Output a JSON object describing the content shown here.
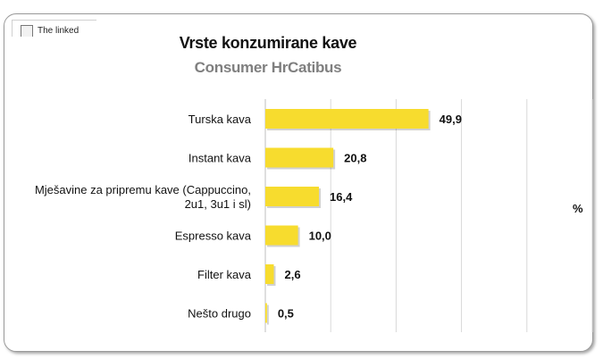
{
  "linked_image": {
    "text": "The linked"
  },
  "chart_data": {
    "type": "bar",
    "orientation": "horizontal",
    "title": "Vrste konzumirane kave",
    "subtitle": "Consumer HrCatibus",
    "categories": [
      "Turska kava",
      "Instant kava",
      "Mješavine za pripremu kave (Cappuccino, 2u1, 3u1 i sl)",
      "Espresso kava",
      "Filter kava",
      "Nešto drugo"
    ],
    "category_lines": [
      [
        "Turska kava"
      ],
      [
        "Instant kava"
      ],
      [
        "Mješavine za pripremu kave (Cappuccino,",
        "2u1, 3u1 i sl)"
      ],
      [
        "Espresso kava"
      ],
      [
        "Filter kava"
      ],
      [
        "Nešto drugo"
      ]
    ],
    "values": [
      49.9,
      20.8,
      16.4,
      10.0,
      2.6,
      0.5
    ],
    "value_labels": [
      "49,9",
      "20,8",
      "16,4",
      "10,0",
      "2,6",
      "0,5"
    ],
    "unit": "%",
    "xlim": [
      0,
      100
    ],
    "grid": true,
    "bar_color": "#f7dc2e",
    "grid_color": "#d9d9d9"
  }
}
